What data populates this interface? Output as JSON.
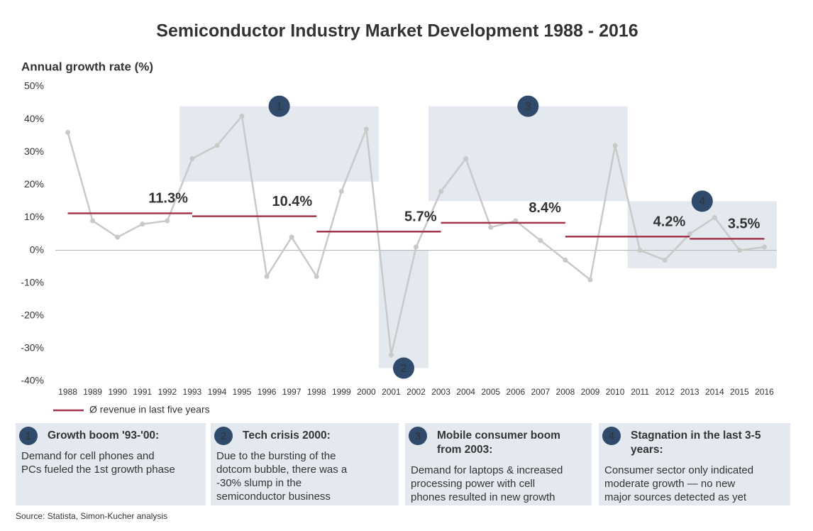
{
  "chart_data": {
    "type": "line",
    "title": "Semiconductor Industry Market Development 1988 - 2016",
    "y_label": "Annual growth rate (%)",
    "x": [
      1988,
      1989,
      1990,
      1991,
      1992,
      1993,
      1994,
      1995,
      1996,
      1997,
      1998,
      1999,
      2000,
      2001,
      2002,
      2003,
      2004,
      2005,
      2006,
      2007,
      2008,
      2009,
      2010,
      2011,
      2012,
      2013,
      2014,
      2015,
      2016
    ],
    "xlim": [
      1987.5,
      2016.5
    ],
    "ylim": [
      -40,
      50
    ],
    "yticks": [
      {
        "value": -40,
        "label": "-40%"
      },
      {
        "value": -30,
        "label": "-30%"
      },
      {
        "value": -20,
        "label": "-20%"
      },
      {
        "value": -10,
        "label": "-10%"
      },
      {
        "value": 0,
        "label": "0%"
      },
      {
        "value": 10,
        "label": "10%"
      },
      {
        "value": 20,
        "label": "20%"
      },
      {
        "value": 30,
        "label": "30%"
      },
      {
        "value": 40,
        "label": "40%"
      },
      {
        "value": 50,
        "label": "50%"
      }
    ],
    "series": [
      {
        "color": "#c9c9c9",
        "values": [
          36,
          9,
          4,
          8,
          9,
          28,
          32,
          41,
          -8,
          4,
          -8,
          18,
          37,
          -32,
          1,
          18,
          28,
          7,
          9,
          3,
          -3,
          -9,
          32,
          0,
          -3,
          5,
          10,
          0,
          1
        ]
      }
    ],
    "averages": {
      "name": "Ø revenue in last five years",
      "color": "#a3364a",
      "segments": [
        {
          "start": 1988,
          "end": 1993,
          "value": 11.3,
          "value_label": "11.3%"
        },
        {
          "start": 1993,
          "end": 1998,
          "value": 10.4,
          "value_label": "10.4%"
        },
        {
          "start": 1998,
          "end": 2003,
          "value": 5.7,
          "value_label": "5.7%"
        },
        {
          "start": 2003,
          "end": 2008,
          "value": 8.4,
          "value_label": "8.4%"
        },
        {
          "start": 2008,
          "end": 2013,
          "value": 4.2,
          "value_label": "4.2%"
        },
        {
          "start": 2013,
          "end": 2016,
          "value": 3.5,
          "value_label": "3.5%"
        }
      ]
    },
    "periods": [
      {
        "label": "1",
        "x_range": [
          1992.5,
          2000.5
        ],
        "y_range": [
          21,
          44
        ],
        "title": [
          "Growth boom '93-'00:"
        ],
        "text": [
          "Demand for cell phones and",
          "PCs fueled the 1st growth phase"
        ]
      },
      {
        "label": "2",
        "x_range": [
          2000.5,
          2002.5
        ],
        "y_range": [
          -36,
          0
        ],
        "title": [
          "Tech crisis 2000:"
        ],
        "text": [
          "Due to the bursting of the",
          "dotcom bubble, there was a",
          "-30% slump in the",
          "semiconductor business"
        ]
      },
      {
        "label": "3",
        "x_range": [
          2002.5,
          2010.5
        ],
        "y_range": [
          15,
          44
        ],
        "title": [
          "Mobile consumer boom",
          "from 2003:"
        ],
        "text": [
          "Demand for laptops & increased",
          "processing power with cell",
          "phones resulted in new growth"
        ]
      },
      {
        "label": "4",
        "x_range": [
          2010.5,
          2016.5
        ],
        "y_range": [
          -5.5,
          15
        ],
        "title": [
          "Stagnation in the last 3-5",
          "years:"
        ],
        "text": [
          "Consumer sector only indicated",
          "moderate growth — no new",
          "major sources detected as yet"
        ]
      }
    ],
    "source": "Source: Statista, Simon-Kucher analysis"
  }
}
